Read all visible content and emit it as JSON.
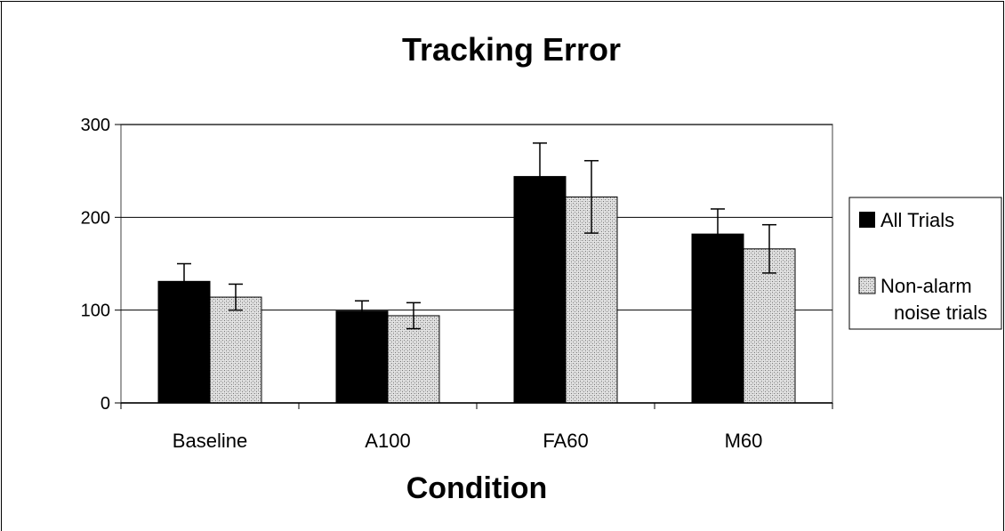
{
  "chart_data": {
    "type": "bar",
    "title": "Tracking Error",
    "xlabel": "Condition",
    "ylabel": "",
    "ylim": [
      0,
      300
    ],
    "yticks": [
      0,
      100,
      200,
      300
    ],
    "grid": true,
    "legend_position": "right",
    "categories": [
      "Baseline",
      "A100",
      "FA60",
      "M60"
    ],
    "series": [
      {
        "name": "All Trials",
        "values": [
          131,
          99,
          244,
          182
        ],
        "error": [
          19,
          11,
          36,
          27
        ],
        "color": "#000000"
      },
      {
        "name_lines": [
          "Non-alarm",
          "noise trials"
        ],
        "values": [
          114,
          94,
          222,
          166
        ],
        "error": [
          14,
          14,
          39,
          26
        ],
        "color": "#c8c8c8",
        "pattern": "dotted"
      }
    ]
  }
}
